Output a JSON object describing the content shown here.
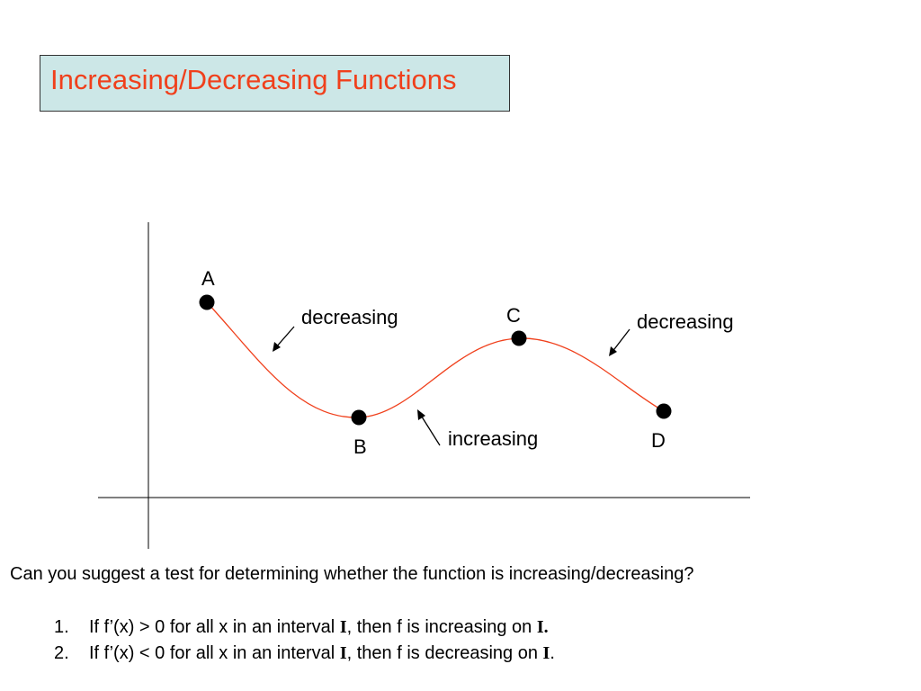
{
  "slide": {
    "title": "Increasing/Decreasing Functions",
    "colors": {
      "title": "#f0401c",
      "title_box_bg": "#cce7e7",
      "curve": "#f0401c",
      "points": "#000000"
    }
  },
  "graph": {
    "points": [
      {
        "id": "A",
        "label": "A"
      },
      {
        "id": "B",
        "label": "B"
      },
      {
        "id": "C",
        "label": "C"
      },
      {
        "id": "D",
        "label": "D"
      }
    ],
    "annotations": {
      "decreasing_left": "decreasing",
      "increasing": "increasing",
      "decreasing_right": "decreasing"
    }
  },
  "question": "Can you suggest a test for determining whether the function is increasing/decreasing?",
  "rules": [
    {
      "num": "1.",
      "prefix": "If f’(x) > 0 for all x in an interval ",
      "interval": "I",
      "middle": ", then f is increasing on ",
      "end": "I."
    },
    {
      "num": "2.",
      "prefix": "If f’(x) < 0 for all x in an interval ",
      "interval": "I",
      "middle": ", then f is decreasing on ",
      "end": "I",
      "suffix": "."
    }
  ]
}
